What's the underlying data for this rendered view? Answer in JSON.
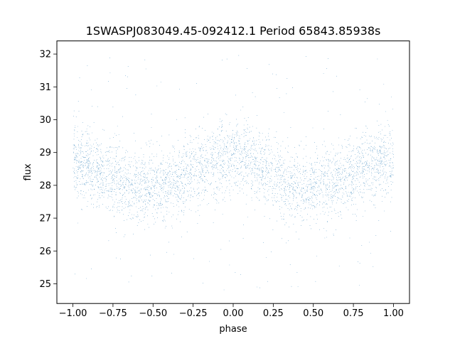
{
  "chart_data": {
    "type": "scatter",
    "title": "1SWASPJ083049.45-092412.1 Period 65843.85938s",
    "xlabel": "phase",
    "ylabel": "flux",
    "xlim": [
      -1.1,
      1.1
    ],
    "ylim": [
      24.4,
      32.4
    ],
    "xticks": [
      -1.0,
      -0.75,
      -0.5,
      -0.25,
      0.0,
      0.25,
      0.5,
      0.75,
      1.0
    ],
    "xtick_labels": [
      "−1.00",
      "−0.75",
      "−0.50",
      "−0.25",
      "0.00",
      "0.25",
      "0.50",
      "0.75",
      "1.00"
    ],
    "yticks": [
      25,
      26,
      27,
      28,
      29,
      30,
      31,
      32
    ],
    "ytick_labels": [
      "25",
      "26",
      "27",
      "28",
      "29",
      "30",
      "31",
      "32"
    ],
    "series": [
      {
        "marker_color": "#1f77b4",
        "x": [
          -1.0,
          -0.9,
          -0.8,
          -0.7,
          -0.6,
          -0.5,
          -0.4,
          -0.3,
          -0.2,
          -0.1,
          0.0,
          0.1,
          0.2,
          0.3,
          0.4,
          0.5,
          0.6,
          0.7,
          0.8,
          0.9,
          1.0
        ],
        "y": [
          28.75,
          28.6,
          28.35,
          28.1,
          27.95,
          27.95,
          28.05,
          28.25,
          28.55,
          28.8,
          28.85,
          28.75,
          28.5,
          28.25,
          28.0,
          27.9,
          28.0,
          28.25,
          28.5,
          28.7,
          28.8
        ],
        "scatter_sigma": 0.55,
        "points_per_phase_unit": 12000
      }
    ],
    "grid": false,
    "legend": "none"
  }
}
